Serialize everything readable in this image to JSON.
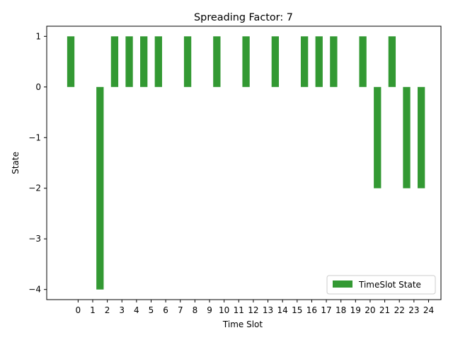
{
  "chart_data": {
    "type": "bar",
    "title": "Spreading Factor: 7",
    "xlabel": "Time Slot",
    "ylabel": "State",
    "x_ticks": [
      "0",
      "1",
      "2",
      "3",
      "4",
      "5",
      "6",
      "7",
      "8",
      "9",
      "10",
      "11",
      "12",
      "13",
      "14",
      "15",
      "16",
      "17",
      "18",
      "19",
      "20",
      "21",
      "22",
      "23",
      "24"
    ],
    "y_ticks": [
      "1",
      "0",
      "−1",
      "−2",
      "−3",
      "−4"
    ],
    "ylim": [
      -4.2,
      1.2
    ],
    "grid": false,
    "legend": {
      "position": "lower-right",
      "entries": [
        "TimeSlot State"
      ]
    },
    "colors": {
      "bar": "#339933"
    },
    "series": [
      {
        "name": "TimeSlot State",
        "x": [
          -0.5,
          1.5,
          2.5,
          3.5,
          4.5,
          5.5,
          7.5,
          9.5,
          11.5,
          13.5,
          15.5,
          16.5,
          17.5,
          19.5,
          20.5,
          21.5,
          22.5,
          23.5
        ],
        "values": [
          1,
          -4,
          1,
          1,
          1,
          1,
          1,
          1,
          1,
          1,
          1,
          1,
          1,
          1,
          -2,
          1,
          -2,
          -2
        ]
      }
    ]
  }
}
